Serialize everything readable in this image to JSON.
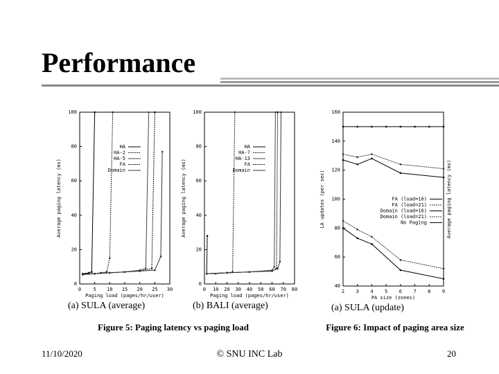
{
  "slide": {
    "title": "Performance",
    "footer": {
      "date": "11/10/2020",
      "org": "© SNU INC Lab",
      "page": "20"
    }
  },
  "figures": [
    {
      "caption": "Figure 5:  Paging latency vs paging load"
    },
    {
      "caption": "Figure 6:  Impact of paging area size"
    }
  ],
  "chart_data": [
    {
      "type": "line",
      "title": "(a) SULA (average)",
      "x_label": "Paging load (pages/hr/user)",
      "y_label": "Average paging latency (ms)",
      "xlim": [
        0,
        30
      ],
      "xticks": [
        0,
        5,
        10,
        15,
        20,
        25,
        30
      ],
      "ylim": [
        0,
        100
      ],
      "yticks": [
        0,
        20,
        40,
        60,
        80,
        100
      ],
      "legend": "upper right",
      "series": [
        {
          "name": "HA",
          "color": "#000000",
          "x": [
            1,
            2,
            3,
            4,
            5
          ],
          "values": [
            6,
            6,
            6.5,
            7,
            100
          ]
        },
        {
          "name": "HA-2",
          "color": "#222222",
          "x": [
            1,
            3,
            5,
            7,
            9,
            10,
            11
          ],
          "values": [
            5.5,
            6,
            6,
            6.5,
            7,
            15,
            100
          ]
        },
        {
          "name": "HA-5",
          "color": "#444444",
          "x": [
            1,
            5,
            10,
            15,
            20,
            22,
            23
          ],
          "values": [
            5.5,
            6,
            6.5,
            7,
            8,
            9,
            100
          ]
        },
        {
          "name": "FA",
          "color": "#111111",
          "x": [
            1,
            5,
            10,
            15,
            20,
            24,
            25
          ],
          "values": [
            5.5,
            6,
            6.5,
            7,
            7.5,
            9,
            100
          ]
        },
        {
          "name": "Domain",
          "color": "#333333",
          "x": [
            1,
            5,
            10,
            15,
            20,
            25,
            27,
            27.5
          ],
          "values": [
            5.5,
            6,
            6.5,
            7,
            7.5,
            8,
            16,
            77
          ]
        }
      ]
    },
    {
      "type": "line",
      "title": "(b) BALI (average)",
      "x_label": "Paging load (pages/hr/user)",
      "y_label": "Average paging latency (ms)",
      "xlim": [
        0,
        80
      ],
      "xticks": [
        0,
        10,
        20,
        30,
        40,
        50,
        60,
        70,
        80
      ],
      "ylim": [
        0,
        100
      ],
      "yticks": [
        0,
        20,
        40,
        60,
        80,
        100
      ],
      "legend": "upper right",
      "series": [
        {
          "name": "HA",
          "color": "#000000",
          "x": [
            2,
            2.5
          ],
          "values": [
            6,
            28
          ]
        },
        {
          "name": "HA-7",
          "color": "#222222",
          "x": [
            2,
            10,
            20,
            25,
            27
          ],
          "values": [
            6,
            6,
            6.5,
            7,
            100
          ]
        },
        {
          "name": "HA-13",
          "color": "#444444",
          "x": [
            2,
            20,
            40,
            60,
            62,
            63
          ],
          "values": [
            6,
            6.5,
            7,
            8,
            10,
            100
          ]
        },
        {
          "name": "FA",
          "color": "#111111",
          "x": [
            2,
            20,
            40,
            60,
            64,
            65
          ],
          "values": [
            6,
            6.5,
            7,
            7.5,
            9,
            100
          ]
        },
        {
          "name": "Domain",
          "color": "#333333",
          "x": [
            2,
            20,
            40,
            60,
            65,
            67,
            68
          ],
          "values": [
            6,
            6.5,
            7,
            7.5,
            9,
            13,
            100
          ]
        }
      ]
    },
    {
      "type": "line",
      "title": "(a) SULA (update)",
      "x_label": "PA size (zones)",
      "y_label": "LA updates (per sec)",
      "y2_label": "Average paging latency (ms)",
      "xlim": [
        2,
        9
      ],
      "xticks": [
        2,
        3,
        4,
        5,
        6,
        7,
        8,
        9
      ],
      "ylim": [
        40,
        160
      ],
      "yticks": [
        40,
        60,
        80,
        100,
        120,
        140,
        160
      ],
      "legend": "center right",
      "series": [
        {
          "name": "FA (load=16)",
          "color": "#000000",
          "x": [
            2,
            3,
            4,
            6,
            9
          ],
          "values": [
            127,
            124,
            128,
            118,
            115
          ]
        },
        {
          "name": "FA (load=21)",
          "color": "#333333",
          "x": [
            2,
            3,
            4,
            6,
            9
          ],
          "values": [
            131,
            129,
            131,
            124,
            121
          ]
        },
        {
          "name": "Domain (load=16)",
          "color": "#000000",
          "x": [
            2,
            3,
            4,
            6,
            9
          ],
          "values": [
            80,
            73,
            69,
            51,
            45
          ]
        },
        {
          "name": "Domain (load=21)",
          "color": "#333333",
          "x": [
            2,
            3,
            4,
            6,
            9
          ],
          "values": [
            85,
            79,
            74,
            58,
            52
          ]
        },
        {
          "name": "No Paging",
          "color": "#000000",
          "x": [
            2,
            3,
            4,
            5,
            6,
            7,
            8,
            9
          ],
          "values": [
            150,
            150,
            150,
            150,
            150,
            150,
            150,
            150
          ]
        }
      ]
    }
  ]
}
